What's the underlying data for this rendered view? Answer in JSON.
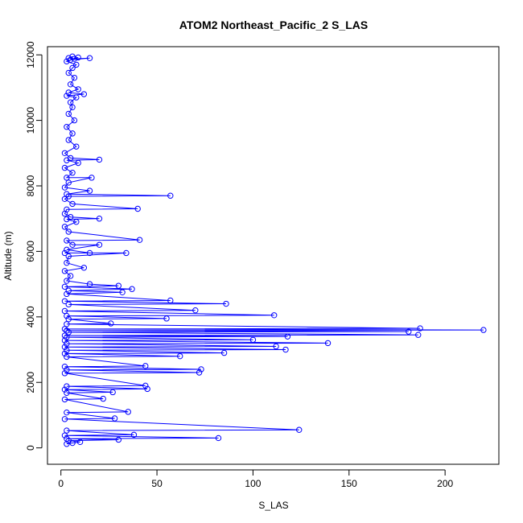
{
  "chart_data": {
    "type": "line",
    "title": "ATOM2 Northeast_Pacific_2 S_LAS",
    "xlabel": "S_LAS",
    "ylabel": "Altitude (m)",
    "xlim": [
      -7,
      228
    ],
    "ylim": [
      -500,
      12250
    ],
    "x_ticks": [
      0,
      50,
      100,
      150,
      200
    ],
    "y_ticks": [
      0,
      2000,
      4000,
      6000,
      8000,
      10000,
      12000
    ],
    "x_tick_labels": [
      "0",
      "50",
      "100",
      "150",
      "200"
    ],
    "y_tick_labels": [
      "0",
      "2000",
      "4000",
      "6000",
      "8000",
      "10000",
      "12000"
    ],
    "grid": false,
    "markers": "open-circle",
    "series": [
      {
        "color": "#0000ff",
        "points": [
          [
            6,
            11950
          ],
          [
            4,
            11900
          ],
          [
            7,
            11880
          ],
          [
            15,
            11900
          ],
          [
            5,
            11850
          ],
          [
            9,
            11920
          ],
          [
            3,
            11800
          ],
          [
            8,
            11700
          ],
          [
            6,
            11600
          ],
          [
            4,
            11450
          ],
          [
            7,
            11300
          ],
          [
            5,
            11100
          ],
          [
            9,
            10950
          ],
          [
            4,
            10850
          ],
          [
            12,
            10800
          ],
          [
            3,
            10750
          ],
          [
            8,
            10700
          ],
          [
            5,
            10550
          ],
          [
            6,
            10400
          ],
          [
            4,
            10200
          ],
          [
            7,
            10000
          ],
          [
            3,
            9800
          ],
          [
            6,
            9600
          ],
          [
            4,
            9400
          ],
          [
            8,
            9200
          ],
          [
            2,
            9000
          ],
          [
            5,
            8850
          ],
          [
            20,
            8800
          ],
          [
            3,
            8780
          ],
          [
            9,
            8700
          ],
          [
            2,
            8550
          ],
          [
            6,
            8400
          ],
          [
            3,
            8250
          ],
          [
            16,
            8250
          ],
          [
            4,
            8100
          ],
          [
            2,
            7950
          ],
          [
            15,
            7850
          ],
          [
            3,
            7750
          ],
          [
            57,
            7700
          ],
          [
            4,
            7680
          ],
          [
            2,
            7600
          ],
          [
            6,
            7450
          ],
          [
            40,
            7300
          ],
          [
            3,
            7280
          ],
          [
            2,
            7150
          ],
          [
            5,
            7050
          ],
          [
            20,
            7000
          ],
          [
            3,
            6980
          ],
          [
            8,
            6900
          ],
          [
            2,
            6750
          ],
          [
            4,
            6600
          ],
          [
            41,
            6350
          ],
          [
            3,
            6330
          ],
          [
            6,
            6200
          ],
          [
            20,
            6200
          ],
          [
            3,
            6050
          ],
          [
            15,
            5950
          ],
          [
            2,
            5950
          ],
          [
            34,
            5950
          ],
          [
            4,
            5850
          ],
          [
            3,
            5650
          ],
          [
            12,
            5500
          ],
          [
            2,
            5400
          ],
          [
            5,
            5250
          ],
          [
            3,
            5100
          ],
          [
            15,
            5000
          ],
          [
            30,
            4950
          ],
          [
            2,
            4920
          ],
          [
            37,
            4850
          ],
          [
            4,
            4800
          ],
          [
            32,
            4750
          ],
          [
            3,
            4700
          ],
          [
            57,
            4500
          ],
          [
            2,
            4480
          ],
          [
            86,
            4400
          ],
          [
            4,
            4380
          ],
          [
            70,
            4200
          ],
          [
            2,
            4180
          ],
          [
            111,
            4050
          ],
          [
            3,
            4030
          ],
          [
            55,
            3950
          ],
          [
            4,
            3930
          ],
          [
            26,
            3800
          ],
          [
            3,
            3780
          ],
          [
            187,
            3650
          ],
          [
            2,
            3630
          ],
          [
            220,
            3600
          ],
          [
            3,
            3580
          ],
          [
            181,
            3550
          ],
          [
            4,
            3530
          ],
          [
            186,
            3450
          ],
          [
            2,
            3430
          ],
          [
            118,
            3400
          ],
          [
            3,
            3380
          ],
          [
            100,
            3300
          ],
          [
            2,
            3280
          ],
          [
            139,
            3200
          ],
          [
            3,
            3180
          ],
          [
            112,
            3100
          ],
          [
            2,
            3080
          ],
          [
            117,
            3000
          ],
          [
            3,
            2980
          ],
          [
            85,
            2900
          ],
          [
            2,
            2880
          ],
          [
            62,
            2800
          ],
          [
            3,
            2780
          ],
          [
            44,
            2500
          ],
          [
            2,
            2480
          ],
          [
            73,
            2400
          ],
          [
            3,
            2380
          ],
          [
            72,
            2300
          ],
          [
            2,
            2280
          ],
          [
            44,
            1900
          ],
          [
            3,
            1880
          ],
          [
            45,
            1800
          ],
          [
            2,
            1780
          ],
          [
            27,
            1700
          ],
          [
            3,
            1680
          ],
          [
            22,
            1500
          ],
          [
            2,
            1480
          ],
          [
            35,
            1100
          ],
          [
            3,
            1080
          ],
          [
            28,
            900
          ],
          [
            2,
            880
          ],
          [
            124,
            550
          ],
          [
            3,
            530
          ],
          [
            38,
            400
          ],
          [
            2,
            380
          ],
          [
            82,
            300
          ],
          [
            3,
            280
          ],
          [
            30,
            250
          ],
          [
            4,
            220
          ],
          [
            10,
            180
          ],
          [
            6,
            150
          ],
          [
            3,
            120
          ]
        ]
      }
    ]
  }
}
